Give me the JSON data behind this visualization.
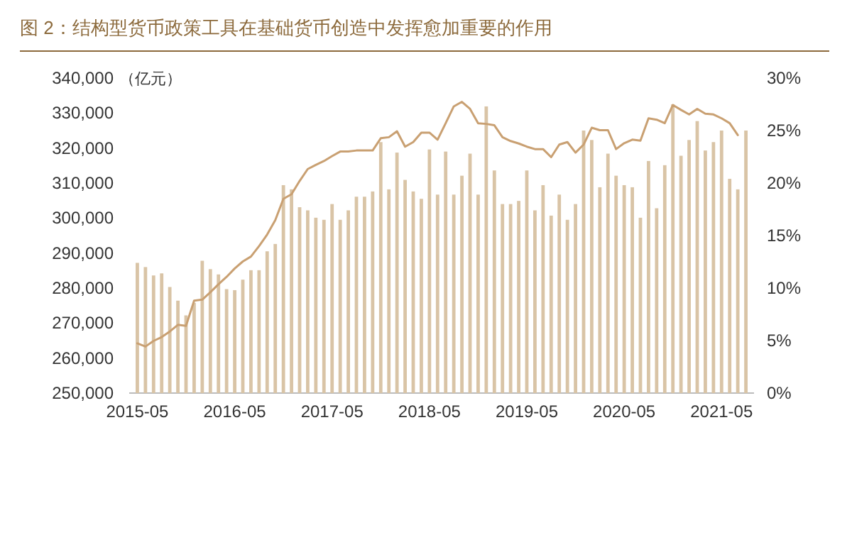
{
  "chart_data": {
    "type": "bar",
    "title": "图 2：结构型货币政策工具在基础货币创造中发挥愈加重要的作用",
    "ylabel": "（亿元）",
    "x": [
      "2015-05",
      "2015-06",
      "2015-07",
      "2015-08",
      "2015-09",
      "2015-10",
      "2015-11",
      "2015-12",
      "2016-01",
      "2016-02",
      "2016-03",
      "2016-04",
      "2016-05",
      "2016-06",
      "2016-07",
      "2016-08",
      "2016-09",
      "2016-10",
      "2016-11",
      "2016-12",
      "2017-01",
      "2017-02",
      "2017-03",
      "2017-04",
      "2017-05",
      "2017-06",
      "2017-07",
      "2017-08",
      "2017-09",
      "2017-10",
      "2017-11",
      "2017-12",
      "2018-01",
      "2018-02",
      "2018-03",
      "2018-04",
      "2018-05",
      "2018-06",
      "2018-07",
      "2018-08",
      "2018-09",
      "2018-10",
      "2018-11",
      "2018-12",
      "2019-01",
      "2019-02",
      "2019-03",
      "2019-04",
      "2019-05",
      "2019-06",
      "2019-07",
      "2019-08",
      "2019-09",
      "2019-10",
      "2019-11",
      "2019-12",
      "2020-01",
      "2020-02",
      "2020-03",
      "2020-04",
      "2020-05",
      "2020-06",
      "2020-07",
      "2020-08",
      "2020-09",
      "2020-10",
      "2020-11",
      "2020-12",
      "2021-01",
      "2021-02",
      "2021-03",
      "2021-04",
      "2021-05",
      "2021-06",
      "2021-07",
      "2021-08"
    ],
    "xlim": [
      "2015-04",
      "2021-09"
    ],
    "xticks": [
      "2015-05",
      "2016-05",
      "2017-05",
      "2018-05",
      "2019-05",
      "2020-05",
      "2021-05"
    ],
    "ylim": [
      250000,
      340000
    ],
    "yticks": [
      {
        "value": 250000,
        "label": "250,000"
      },
      {
        "value": 260000,
        "label": "260,000"
      },
      {
        "value": 270000,
        "label": "270,000"
      },
      {
        "value": 280000,
        "label": "280,000"
      },
      {
        "value": 290000,
        "label": "290,000"
      },
      {
        "value": 300000,
        "label": "300,000"
      },
      {
        "value": 310000,
        "label": "310,000"
      },
      {
        "value": 320000,
        "label": "320,000"
      },
      {
        "value": 330000,
        "label": "330,000"
      },
      {
        "value": 340000,
        "label": "340,000"
      }
    ],
    "y2lim": [
      0,
      30
    ],
    "y2ticks": [
      {
        "value": 0,
        "label": "0%"
      },
      {
        "value": 5,
        "label": "5%"
      },
      {
        "value": 10,
        "label": "10%"
      },
      {
        "value": 15,
        "label": "15%"
      },
      {
        "value": 20,
        "label": "20%"
      },
      {
        "value": 25,
        "label": "25%"
      },
      {
        "value": 30,
        "label": "30%"
      }
    ],
    "series": [
      {
        "axis": "y2",
        "color": "#d9c4a6",
        "values": [
          12.4,
          12.0,
          11.2,
          11.4,
          10.1,
          8.8,
          7.4,
          8.6,
          12.6,
          11.8,
          11.3,
          9.9,
          9.8,
          10.8,
          11.7,
          11.7,
          13.5,
          14.2,
          19.8,
          19.4,
          17.7,
          17.4,
          16.7,
          16.5,
          18.0,
          16.5,
          17.4,
          18.7,
          18.7,
          19.2,
          23.9,
          19.4,
          22.9,
          20.3,
          19.2,
          18.5,
          23.2,
          18.9,
          23.0,
          18.9,
          20.7,
          22.8,
          18.9,
          27.3,
          21.2,
          18.0,
          18.0,
          18.3,
          21.2,
          17.4,
          19.8,
          16.9,
          18.9,
          16.5,
          18.0,
          25.0,
          24.1,
          19.6,
          22.8,
          20.7,
          19.8,
          19.6,
          16.7,
          22.1,
          17.6,
          21.7,
          27.5,
          22.6,
          24.1,
          25.9,
          23.1,
          23.9,
          25.0,
          20.4,
          19.4,
          25.0
        ]
      },
      {
        "type": "line",
        "axis": "y",
        "color": "#c9a072",
        "values": [
          264200,
          263300,
          264900,
          266000,
          267600,
          269500,
          269200,
          276400,
          276700,
          278800,
          281100,
          283200,
          285600,
          287600,
          289000,
          292000,
          295300,
          299400,
          305500,
          306800,
          310600,
          314000,
          315200,
          316300,
          317700,
          319000,
          319000,
          319300,
          319300,
          319300,
          322800,
          323100,
          324800,
          320400,
          321700,
          324400,
          324400,
          322400,
          327100,
          331900,
          333200,
          331200,
          327100,
          326900,
          326500,
          323100,
          322000,
          321300,
          320400,
          319700,
          319700,
          317400,
          321000,
          321700,
          318700,
          321000,
          325800,
          325100,
          325100,
          319700,
          321400,
          322400,
          322100,
          328500,
          328100,
          327100,
          332300,
          330900,
          329600,
          331200,
          329800,
          329600,
          328500,
          327100,
          323700,
          null
        ]
      }
    ]
  }
}
